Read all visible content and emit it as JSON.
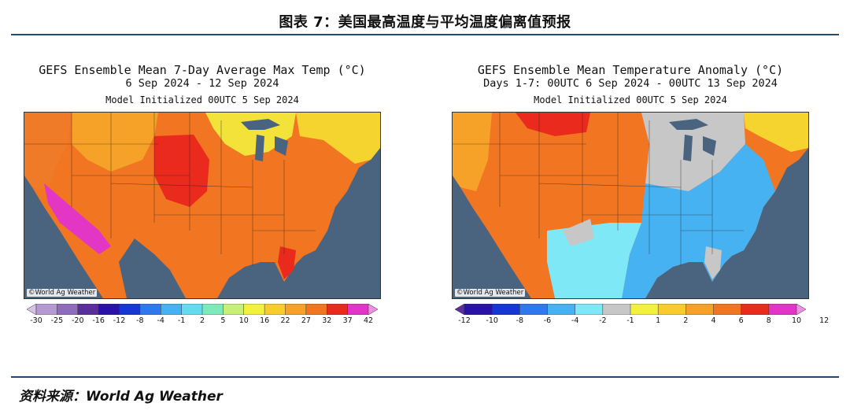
{
  "figure": {
    "title": "图表 7：美国最高温度与平均温度偏离值预报",
    "source": "资料来源：World Ag Weather"
  },
  "panels": [
    {
      "title": "GEFS Ensemble Mean 7-Day Average Max Temp (°C)",
      "subtitle": "6 Sep 2024 - 12 Sep 2024",
      "init": "Model Initialized 00UTC 5 Sep 2024",
      "credit": "©World Ag Weather",
      "colorbar": {
        "labels": [
          "-30",
          "-25",
          "-20",
          "-16",
          "-12",
          "-8",
          "-4",
          "-1",
          "2",
          "5",
          "10",
          "16",
          "22",
          "27",
          "32",
          "37",
          "42"
        ],
        "colors": [
          "#d8c2e6",
          "#b59ad2",
          "#8f6cbc",
          "#5a2f9a",
          "#2a12a8",
          "#1637d6",
          "#2f78f0",
          "#47b2f2",
          "#63dcf0",
          "#7fe9b9",
          "#c7f07a",
          "#f2f23c",
          "#f8cc2a",
          "#f6a228",
          "#f27521",
          "#ea2a1c",
          "#e434c8",
          "#f08ee6"
        ]
      },
      "map_regions": [
        {
          "name": "west-coast",
          "color": "#ef7a27"
        },
        {
          "name": "desert-southwest",
          "color": "#e436c4"
        },
        {
          "name": "northern-plains",
          "color": "#f6a228"
        },
        {
          "name": "central-plains",
          "color": "#ea2a1c"
        },
        {
          "name": "great-lakes",
          "color": "#f2e23a"
        },
        {
          "name": "northeast",
          "color": "#f6d430"
        },
        {
          "name": "southeast",
          "color": "#f27521"
        },
        {
          "name": "florida",
          "color": "#ea2a1c"
        },
        {
          "name": "ocean",
          "color": "#4a6480"
        }
      ]
    },
    {
      "title": "GEFS Ensemble Mean Temperature Anomaly (°C)",
      "subtitle": "Days 1-7: 00UTC 6 Sep 2024 - 00UTC 13 Sep 2024",
      "init": "Model Initialized 00UTC 5 Sep 2024",
      "credit": "©World Ag Weather",
      "colorbar": {
        "labels": [
          "-12",
          "-10",
          "-8",
          "-6",
          "-4",
          "-2",
          "-1",
          "1",
          "2",
          "4",
          "6",
          "8",
          "10",
          "12"
        ],
        "colors": [
          "#5a2f9a",
          "#2a12a8",
          "#1637d6",
          "#2f78f0",
          "#47b2f2",
          "#7fe8f6",
          "#c7c7c7",
          "#f2f23c",
          "#f8cc2a",
          "#f6a228",
          "#f27521",
          "#ea2a1c",
          "#e434c8",
          "#f08ee6"
        ]
      },
      "map_regions": [
        {
          "name": "west-coast",
          "color": "#f27521"
        },
        {
          "name": "northern-plains",
          "color": "#ea2a1c"
        },
        {
          "name": "central-plains",
          "color": "#f27521"
        },
        {
          "name": "great-lakes",
          "color": "#c7c7c7"
        },
        {
          "name": "northeast",
          "color": "#f6d430"
        },
        {
          "name": "southeast",
          "color": "#47b2f2"
        },
        {
          "name": "texas-mexico",
          "color": "#7fe8f6"
        },
        {
          "name": "ocean",
          "color": "#4a6480"
        }
      ]
    }
  ]
}
